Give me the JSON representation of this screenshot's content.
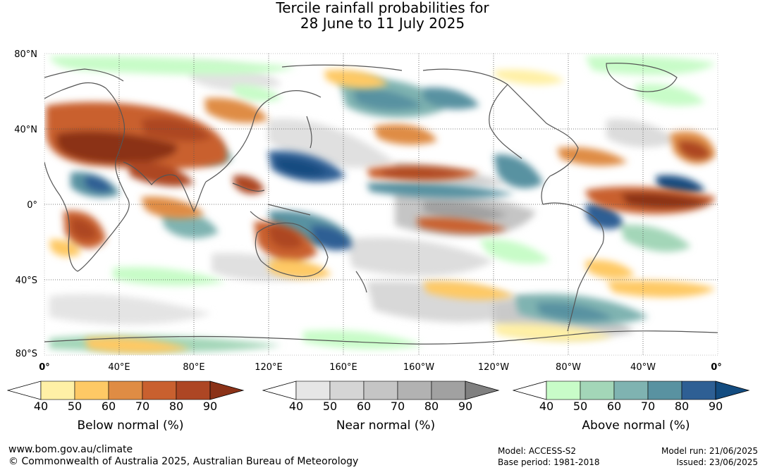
{
  "title": {
    "line1": "Tercile rainfall probabilities for",
    "line2": "28 June to 11 July 2025"
  },
  "map": {
    "lat_labels": [
      "80°N",
      "40°N",
      "0°",
      "40°S",
      "80°S"
    ],
    "lon_labels": [
      "0°",
      "40°E",
      "80°E",
      "120°E",
      "160°E",
      "160°W",
      "120°W",
      "80°W",
      "40°W",
      "0°"
    ]
  },
  "legend": [
    {
      "title": "Below normal (%)",
      "ticks": [
        "40",
        "50",
        "60",
        "70",
        "80",
        "90"
      ],
      "colors": [
        "#fff0a6",
        "#fec965",
        "#df8c44",
        "#c9602f",
        "#ad4624",
        "#8b3218"
      ]
    },
    {
      "title": "Near normal (%)",
      "ticks": [
        "40",
        "50",
        "60",
        "70",
        "80",
        "90"
      ],
      "colors": [
        "#e6e6e6",
        "#d5d5d5",
        "#c5c5c5",
        "#b2b2b2",
        "#a1a1a1",
        "#808080"
      ]
    },
    {
      "title": "Above normal (%)",
      "ticks": [
        "40",
        "50",
        "60",
        "70",
        "80",
        "90"
      ],
      "colors": [
        "#c8fcc8",
        "#a3d6b8",
        "#7fb3b1",
        "#5992a1",
        "#2e5f94",
        "#134c80"
      ]
    }
  ],
  "footer": {
    "website": "www.bom.gov.au/climate",
    "copyright": "© Commonwealth of Australia 2025, Australian Bureau of Meteorology",
    "model": "Model: ACCESS-S2",
    "base_period": "Base period: 1981-2018",
    "model_run": "Model run: 21/06/2025",
    "issued": "Issued: 23/06/2025"
  }
}
